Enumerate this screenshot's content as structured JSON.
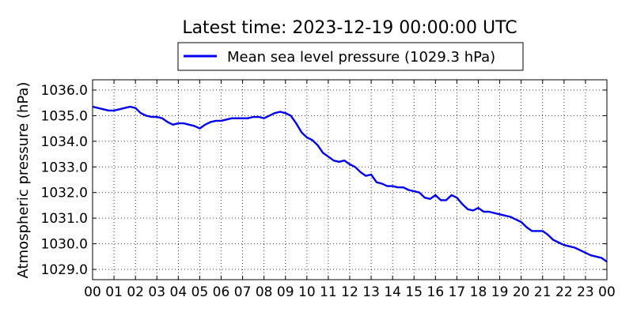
{
  "chart_data": {
    "type": "line",
    "title": "Latest time: 2023-12-19 00:00:00 UTC",
    "ylabel": "Atmospheric pressure (hPa)",
    "xlabel": "",
    "xlim": [
      0,
      24
    ],
    "ylim": [
      1028.6,
      1036.4
    ],
    "grid": true,
    "legend_position": "top-center",
    "x_tick_labels": [
      "00",
      "01",
      "02",
      "03",
      "04",
      "05",
      "06",
      "07",
      "08",
      "09",
      "10",
      "11",
      "12",
      "13",
      "14",
      "15",
      "16",
      "17",
      "18",
      "19",
      "20",
      "21",
      "22",
      "23",
      "00"
    ],
    "y_ticks": [
      1029.0,
      1030.0,
      1031.0,
      1032.0,
      1033.0,
      1034.0,
      1035.0,
      1036.0
    ],
    "y_tick_labels": [
      "1029.0",
      "1030.0",
      "1031.0",
      "1032.0",
      "1033.0",
      "1034.0",
      "1035.0",
      "1036.0"
    ],
    "series": [
      {
        "name": "Mean sea level pressure (1029.3 hPa)",
        "color": "#0000ee",
        "x": [
          0,
          0.25,
          0.5,
          0.75,
          1.0,
          1.25,
          1.5,
          1.75,
          2.0,
          2.25,
          2.5,
          2.75,
          3.0,
          3.25,
          3.5,
          3.75,
          4.0,
          4.25,
          4.5,
          4.75,
          5.0,
          5.25,
          5.5,
          5.75,
          6.0,
          6.25,
          6.5,
          6.75,
          7.0,
          7.25,
          7.5,
          7.75,
          8.0,
          8.25,
          8.5,
          8.75,
          9.0,
          9.25,
          9.5,
          9.75,
          10.0,
          10.25,
          10.5,
          10.75,
          11.0,
          11.25,
          11.5,
          11.75,
          12.0,
          12.25,
          12.5,
          12.75,
          13.0,
          13.25,
          13.5,
          13.75,
          14.0,
          14.25,
          14.5,
          14.75,
          15.0,
          15.25,
          15.5,
          15.75,
          16.0,
          16.25,
          16.5,
          16.75,
          17.0,
          17.25,
          17.5,
          17.75,
          18.0,
          18.25,
          18.5,
          18.75,
          19.0,
          19.25,
          19.5,
          19.75,
          20.0,
          20.25,
          20.5,
          20.75,
          21.0,
          21.25,
          21.5,
          21.75,
          22.0,
          22.25,
          22.5,
          22.75,
          23.0,
          23.25,
          23.5,
          23.75,
          24.0
        ],
        "values": [
          1035.35,
          1035.3,
          1035.25,
          1035.2,
          1035.2,
          1035.25,
          1035.3,
          1035.35,
          1035.3,
          1035.1,
          1035.0,
          1034.95,
          1034.95,
          1034.9,
          1034.75,
          1034.65,
          1034.7,
          1034.7,
          1034.65,
          1034.6,
          1034.5,
          1034.65,
          1034.75,
          1034.8,
          1034.8,
          1034.85,
          1034.9,
          1034.9,
          1034.9,
          1034.9,
          1034.95,
          1034.95,
          1034.9,
          1035.0,
          1035.1,
          1035.15,
          1035.1,
          1035.0,
          1034.7,
          1034.35,
          1034.15,
          1034.05,
          1033.85,
          1033.55,
          1033.4,
          1033.25,
          1033.2,
          1033.25,
          1033.1,
          1033.0,
          1032.8,
          1032.65,
          1032.7,
          1032.4,
          1032.35,
          1032.25,
          1032.25,
          1032.2,
          1032.2,
          1032.1,
          1032.05,
          1032.0,
          1031.8,
          1031.75,
          1031.9,
          1031.7,
          1031.7,
          1031.9,
          1031.8,
          1031.55,
          1031.35,
          1031.3,
          1031.4,
          1031.25,
          1031.25,
          1031.2,
          1031.15,
          1031.1,
          1031.05,
          1030.95,
          1030.85,
          1030.65,
          1030.5,
          1030.5,
          1030.5,
          1030.35,
          1030.15,
          1030.05,
          1029.95,
          1029.9,
          1029.85,
          1029.75,
          1029.65,
          1029.55,
          1029.5,
          1029.45,
          1029.3
        ]
      }
    ]
  }
}
